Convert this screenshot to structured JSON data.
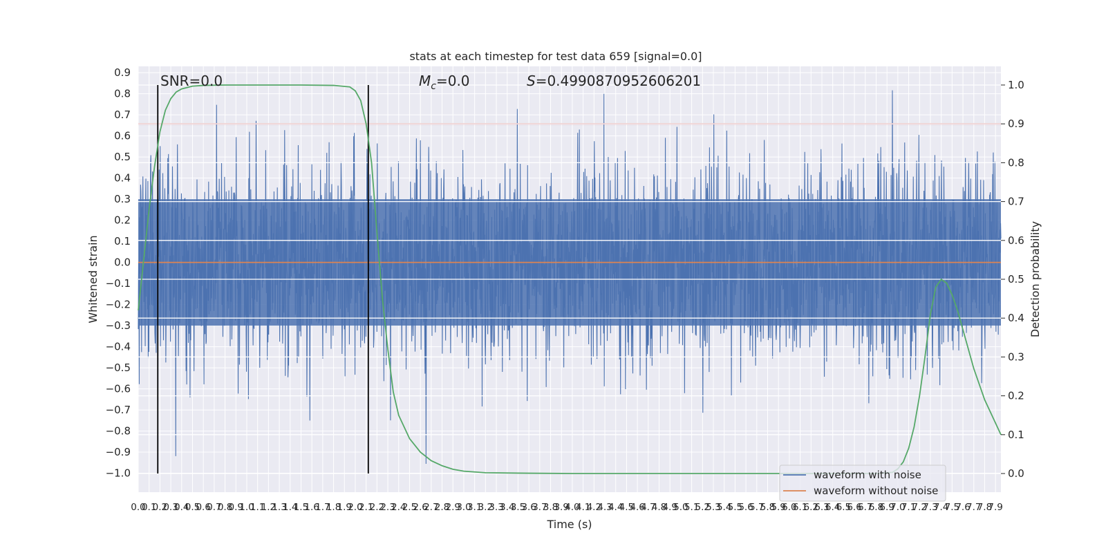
{
  "chart_data": {
    "type": "line",
    "title": "stats at each timestep for test data 659 [signal=0.0]",
    "xlabel": "Time (s)",
    "ylabel": "Whitened strain",
    "y2label": "Detection probability",
    "xlim": [
      0.0,
      7.95
    ],
    "ylim": [
      -1.09,
      0.93
    ],
    "y2lim": [
      -0.048,
      1.048
    ],
    "grid": true,
    "legend_position": "lower-right",
    "annotations": {
      "snr": "SNR=0.0",
      "mc_symbol": "M",
      "mc_sub": "c",
      "mc_value": "=0.0",
      "s_symbol": "S",
      "s_value": "=0.4990870952606201"
    },
    "x_tick_labels": [
      "0.0",
      "0.1",
      "0.2",
      "0.3",
      "0.4",
      "0.5",
      "0.6",
      "0.7",
      "0.8",
      "0.9",
      "1.0",
      "1.1",
      "1.2",
      "1.3",
      "1.4",
      "1.5",
      "1.6",
      "1.7",
      "1.8",
      "1.9",
      "2.0",
      "2.1",
      "2.2",
      "2.3",
      "2.4",
      "2.5",
      "2.6",
      "2.7",
      "2.8",
      "2.9",
      "3.0",
      "3.1",
      "3.2",
      "3.3",
      "3.4",
      "3.5",
      "3.6",
      "3.7",
      "3.8",
      "3.9",
      "4.0",
      "4.1",
      "4.2",
      "4.3",
      "4.4",
      "4.5",
      "4.6",
      "4.7",
      "4.8",
      "4.9",
      "5.0",
      "5.1",
      "5.2",
      "5.3",
      "5.4",
      "5.5",
      "5.6",
      "5.7",
      "5.8",
      "5.9",
      "6.0",
      "6.1",
      "6.2",
      "6.3",
      "6.4",
      "6.5",
      "6.6",
      "6.7",
      "6.8",
      "6.9",
      "7.0",
      "7.1",
      "7.2",
      "7.3",
      "7.4",
      "7.5",
      "7.6",
      "7.7",
      "7.8",
      "7.9"
    ],
    "y_tick_labels": [
      "0.9",
      "0.8",
      "0.7",
      "0.6",
      "0.5",
      "0.4",
      "0.3",
      "0.2",
      "0.1",
      "0.0",
      "−0.1",
      "−0.2",
      "−0.3",
      "−0.4",
      "−0.5",
      "−0.6",
      "−0.7",
      "−0.8",
      "−0.9",
      "−1.0"
    ],
    "y2_tick_labels": [
      "1.0",
      "0.9",
      "0.8",
      "0.7",
      "0.6",
      "0.5",
      "0.4",
      "0.3",
      "0.2",
      "0.1",
      "0.0"
    ],
    "series": [
      {
        "name": "waveform with noise",
        "color": "#4c72b0",
        "kind": "noise",
        "core_amplitude": [
          -0.3,
          0.3
        ],
        "max_range": [
          -1.0,
          0.87
        ]
      },
      {
        "name": "waveform without noise",
        "color": "#dd8452",
        "kind": "constant",
        "value": 0.0
      }
    ],
    "detection_probability": {
      "color": "#55a868",
      "x": [
        0.0,
        0.05,
        0.1,
        0.15,
        0.2,
        0.25,
        0.3,
        0.35,
        0.4,
        0.5,
        0.6,
        0.8,
        1.0,
        1.5,
        1.8,
        1.95,
        2.0,
        2.05,
        2.1,
        2.15,
        2.2,
        2.25,
        2.3,
        2.35,
        2.4,
        2.5,
        2.6,
        2.7,
        2.8,
        2.9,
        3.0,
        3.2,
        3.5,
        4.0,
        5.0,
        6.0,
        6.8,
        6.95,
        7.0,
        7.05,
        7.1,
        7.15,
        7.2,
        7.25,
        7.3,
        7.35,
        7.4,
        7.45,
        7.5,
        7.55,
        7.6,
        7.65,
        7.7,
        7.75,
        7.8,
        7.85,
        7.9,
        7.95
      ],
      "y": [
        0.42,
        0.55,
        0.68,
        0.79,
        0.88,
        0.935,
        0.965,
        0.982,
        0.99,
        0.997,
        0.999,
        1.0,
        1.0,
        1.0,
        0.999,
        0.995,
        0.985,
        0.96,
        0.9,
        0.8,
        0.62,
        0.45,
        0.32,
        0.21,
        0.15,
        0.09,
        0.055,
        0.033,
        0.02,
        0.011,
        0.006,
        0.002,
        0.001,
        0.0,
        0.0,
        0.0,
        0.0,
        0.003,
        0.012,
        0.03,
        0.065,
        0.12,
        0.2,
        0.3,
        0.41,
        0.48,
        0.5,
        0.49,
        0.46,
        0.42,
        0.37,
        0.32,
        0.27,
        0.23,
        0.19,
        0.16,
        0.13,
        0.1
      ]
    },
    "threshold_line": {
      "color": "#c44e52",
      "value": 0.9,
      "axis": "y2"
    },
    "vertical_lines": {
      "color": "#000000",
      "x": [
        0.18,
        2.12
      ]
    }
  }
}
